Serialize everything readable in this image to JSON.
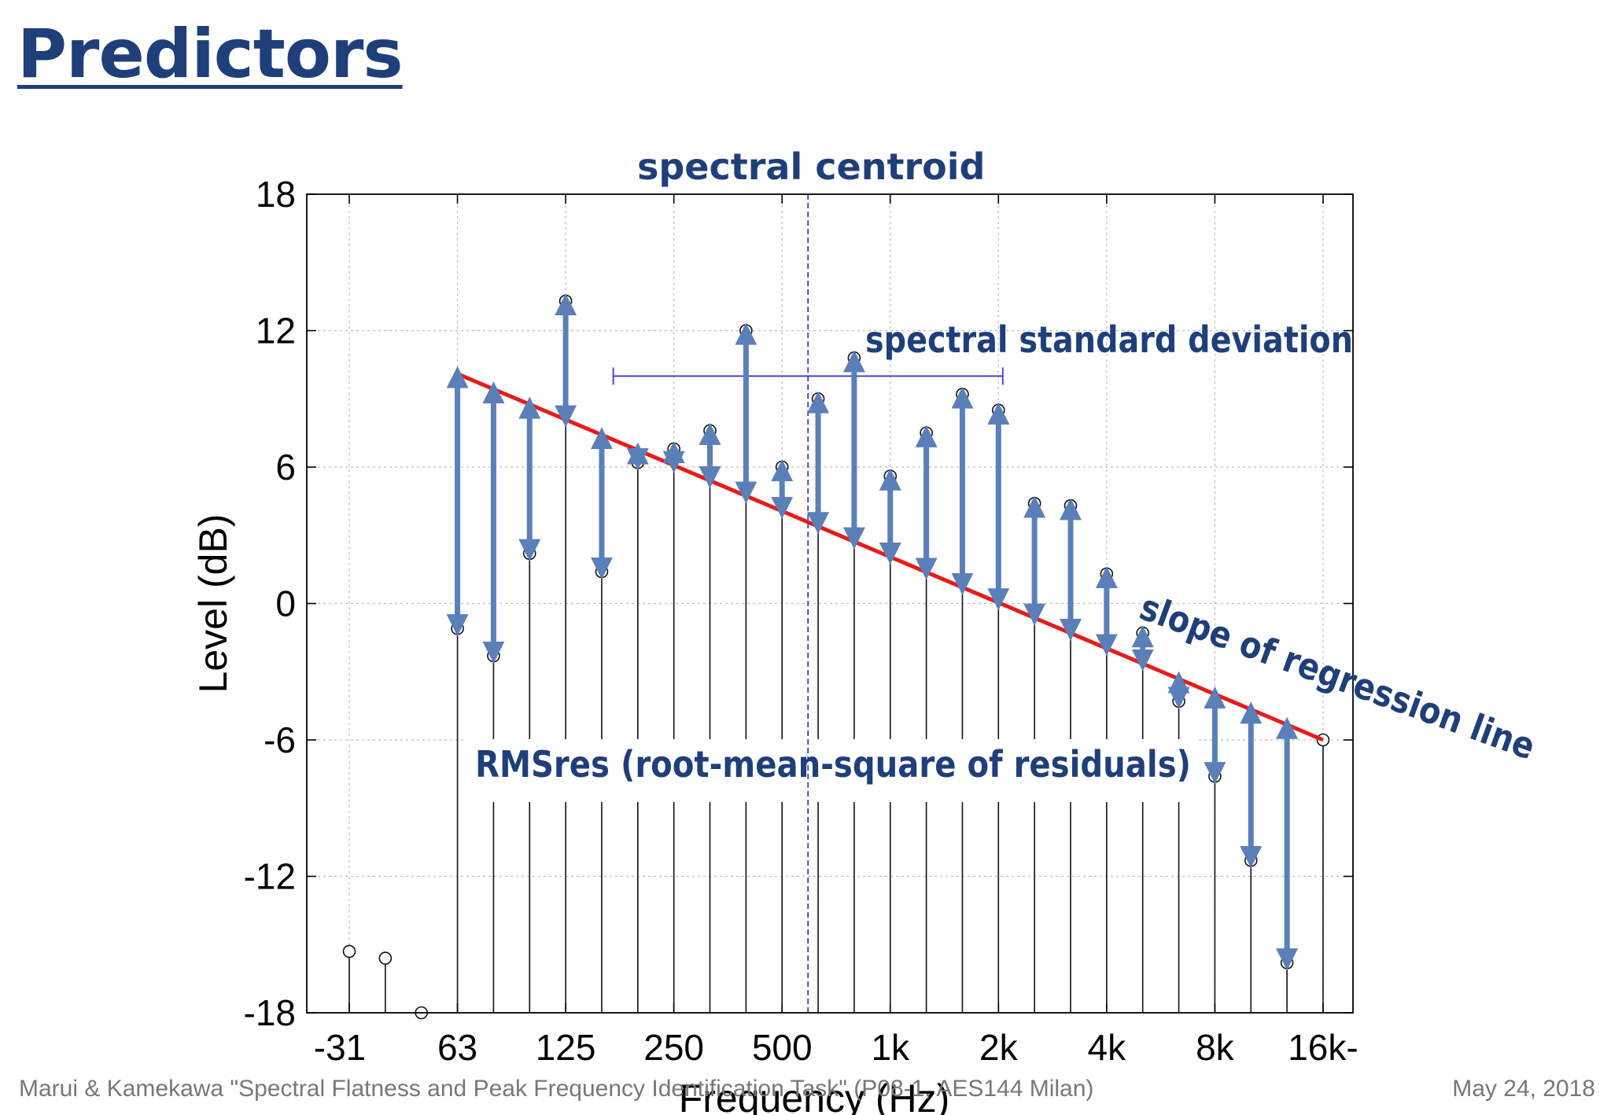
{
  "slide": {
    "title": "Predictors",
    "footer_left": "Marui & Kamekawa \"Spectral Flatness and Peak Frequency Identification Task\" (P08-1, AES144 Milan)",
    "footer_right": "May 24, 2018"
  },
  "colors": {
    "title": "#1f3f7a",
    "annotation": "#1f3f7a",
    "regression": "#e51c1c",
    "residual_arrow": "#5b7fb8",
    "centroid": "#3b3bd6",
    "stem": "#111111",
    "grid": "#bdbdbd"
  },
  "chart_data": {
    "type": "stem",
    "xlabel": "Frequency (Hz)",
    "ylabel": "Level (dB)",
    "ylim": [
      -18,
      18
    ],
    "yticks": [
      18,
      12,
      6,
      0,
      -6,
      -12,
      -18
    ],
    "grid": true,
    "x_tick_labels": [
      "-31",
      "63",
      "125",
      "250",
      "500",
      "1k",
      "2k",
      "4k",
      "8k",
      "16k-"
    ],
    "x_tick_band_index": [
      0,
      3,
      6,
      9,
      12,
      15,
      18,
      21,
      24,
      27
    ],
    "bands": [
      {
        "band": "31.5",
        "level": -15.3
      },
      {
        "band": "40",
        "level": -15.6
      },
      {
        "band": "50",
        "level": -18
      },
      {
        "band": "63",
        "level": -1.1
      },
      {
        "band": "80",
        "level": -2.3
      },
      {
        "band": "100",
        "level": 2.2
      },
      {
        "band": "125",
        "level": 13.3
      },
      {
        "band": "160",
        "level": 1.4
      },
      {
        "band": "200",
        "level": 6.2
      },
      {
        "band": "250",
        "level": 6.8
      },
      {
        "band": "315",
        "level": 7.6
      },
      {
        "band": "400",
        "level": 12.0
      },
      {
        "band": "500",
        "level": 6.0
      },
      {
        "band": "630",
        "level": 9.0
      },
      {
        "band": "800",
        "level": 10.8
      },
      {
        "band": "1k",
        "level": 5.6
      },
      {
        "band": "1.25k",
        "level": 7.5
      },
      {
        "band": "1.6k",
        "level": 9.2
      },
      {
        "band": "2k",
        "level": 8.5
      },
      {
        "band": "2.5k",
        "level": 4.4
      },
      {
        "band": "3.15k",
        "level": 4.3
      },
      {
        "band": "4k",
        "level": 1.3
      },
      {
        "band": "5k",
        "level": -1.3
      },
      {
        "band": "6.3k",
        "level": -4.3
      },
      {
        "band": "8k",
        "level": -7.6
      },
      {
        "band": "10k",
        "level": -11.3
      },
      {
        "band": "12.5k",
        "level": -15.8
      },
      {
        "band": "16k",
        "level": -6.0
      }
    ],
    "regression_line": {
      "label": "slope of regression line",
      "from": {
        "band_index": 3,
        "level": 10.1
      },
      "to": {
        "band_index": 27,
        "level": -6.0
      }
    },
    "spectral_centroid": {
      "label": "spectral centroid",
      "band_index": 12.72
    },
    "spectral_std": {
      "label": "spectral standard deviation",
      "from_band_index": 7.32,
      "to_band_index": 18.12,
      "level": 10.0
    },
    "residuals_label": "RMSres (root-mean-square of residuals)"
  }
}
